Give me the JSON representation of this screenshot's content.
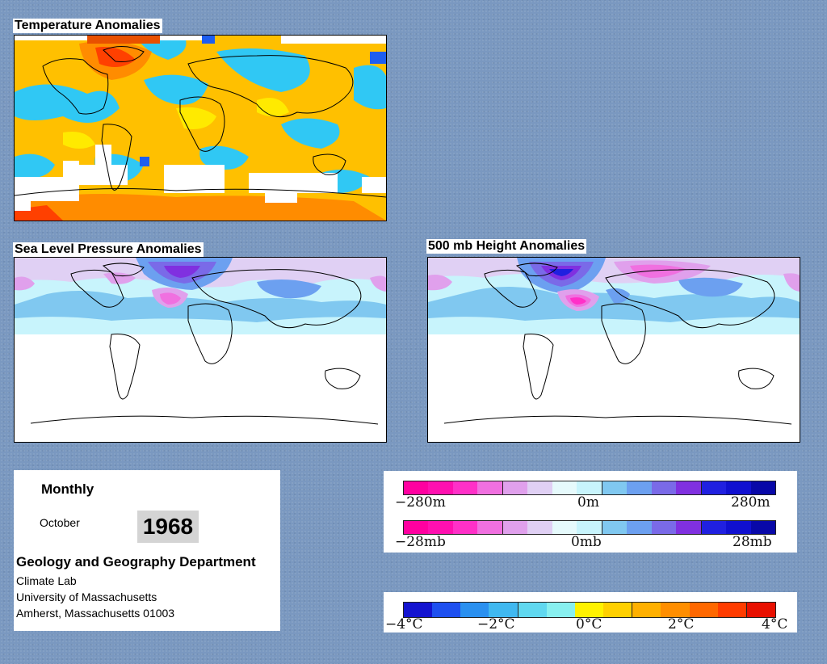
{
  "panels": {
    "temperature": {
      "title": "Temperature Anomalies"
    },
    "slp": {
      "title": "Sea Level Pressure Anomalies"
    },
    "height500": {
      "title": "500 mb Height Anomalies"
    }
  },
  "info": {
    "period": "Monthly",
    "month": "October",
    "year": "1968",
    "department": "Geology and Geography Department",
    "address": [
      "Climate Lab",
      "University of Massachusetts",
      "Amherst, Massachusetts 01003"
    ]
  },
  "legends": {
    "height": {
      "labels": [
        "−280m",
        "0m",
        "280m"
      ]
    },
    "pressure": {
      "labels": [
        "−28mb",
        "0mb",
        "28mb"
      ]
    },
    "temperature": {
      "labels": [
        "−4°C",
        "−2°C",
        "0°C",
        "2°C",
        "4°C"
      ]
    }
  },
  "colors": {
    "background": "#7a98c0",
    "anomaly_scale": [
      "#ff00a0",
      "#ff10b0",
      "#ff30c8",
      "#f070e0",
      "#e0a0ec",
      "#e0d0f4",
      "#e6fafc",
      "#c8f4fc",
      "#80c8f0",
      "#6ca0f0",
      "#7a6ae8",
      "#8030e0",
      "#2020e0",
      "#1010d0",
      "#0808a8"
    ],
    "temperature_scale": [
      "#1414d0",
      "#1e50f0",
      "#2a90f0",
      "#40b8f0",
      "#60d8f0",
      "#88f0f0",
      "#fff200",
      "#ffd000",
      "#ffb000",
      "#ff8e00",
      "#ff6800",
      "#ff3c00",
      "#e81000"
    ]
  }
}
